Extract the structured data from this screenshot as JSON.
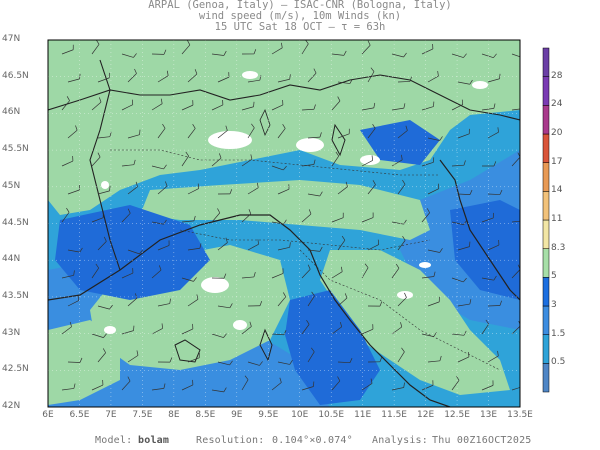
{
  "header": {
    "line1": "ARPAL (Genoa, Italy)  —  ISAC-CNR (Bologna, Italy)",
    "line2": "wind speed (m/s), 10m Winds (kn)",
    "line3": "15 UTC Sat 18 OCT  —  τ = 63h"
  },
  "axes": {
    "lat_labels": [
      "47N",
      "46.5N",
      "46N",
      "45.5N",
      "45N",
      "44.5N",
      "44N",
      "43.5N",
      "43N",
      "42.5N",
      "42N"
    ],
    "lon_labels": [
      "6E",
      "6.5E",
      "7E",
      "7.5E",
      "8E",
      "8.5E",
      "9E",
      "9.5E",
      "10E",
      "10.5E",
      "11E",
      "11.5E",
      "12E",
      "12.5E",
      "13E",
      "13.5E"
    ],
    "lat_range": [
      42,
      47
    ],
    "lon_range": [
      6,
      13.5
    ]
  },
  "colorbar": {
    "labels": [
      "0.5",
      "1.5",
      "3",
      "5",
      "8.3",
      "11",
      "14",
      "17",
      "20",
      "24",
      "28"
    ],
    "colors": [
      "#4f86c6",
      "#2ea3d8",
      "#3d8de0",
      "#1c6fe0",
      "#a7dfa8",
      "#f2e6a5",
      "#f2c27a",
      "#e89a55",
      "#d9553a",
      "#a93a8c",
      "#7a3bb3",
      "#6b3fa6"
    ]
  },
  "footer": {
    "model_label": "Model:",
    "model_value": "bolam",
    "resolution_label": "Resolution:",
    "resolution_value": "0.104°×0.074°",
    "analysis_label": "Analysis:",
    "analysis_value": "Thu 00Z16OCT2025"
  },
  "colors": {
    "green": "#9ed8a6",
    "light_blue": "#2fa3d9",
    "mid_blue": "#3a8ee0",
    "deep_blue": "#1f6bd8",
    "white": "#ffffff"
  }
}
